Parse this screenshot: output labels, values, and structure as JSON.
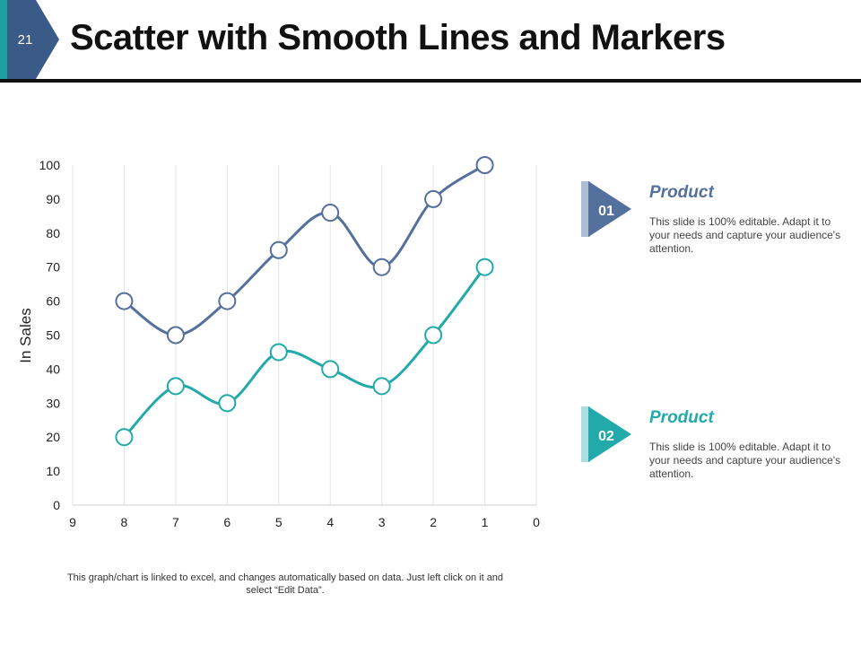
{
  "slide": {
    "number": "21",
    "title": "Scatter with Smooth Lines and Markers",
    "note": "This graph/chart is linked to excel,  and changes automatically based on data. Just left click on it and select “Edit Data”."
  },
  "colors": {
    "series1": "#54709c",
    "series2": "#22aaab",
    "badge_dark": "#54709c",
    "badge_light": "#22aaab",
    "accent_teal": "#1f9fa0",
    "accent_navy": "#3a5a88"
  },
  "products": [
    {
      "number": "01",
      "name": "Product",
      "description": "This slide is 100% editable. Adapt it to your needs and capture your audience's attention."
    },
    {
      "number": "02",
      "name": "Product",
      "description": "This slide is 100% editable. Adapt it to your needs and capture your audience's attention."
    }
  ],
  "chart_data": {
    "type": "scatter",
    "title": "",
    "xlabel": "",
    "ylabel": "In Sales",
    "x_reversed": true,
    "xlim": [
      9,
      0
    ],
    "ylim": [
      0,
      100
    ],
    "x_ticks": [
      9,
      8,
      7,
      6,
      5,
      4,
      3,
      2,
      1,
      0
    ],
    "y_ticks": [
      0,
      10,
      20,
      30,
      40,
      50,
      60,
      70,
      80,
      90,
      100
    ],
    "grid": "vertical",
    "legend": "none",
    "smooth": true,
    "markers": true,
    "series": [
      {
        "x": [
          8,
          7,
          6,
          5,
          4,
          3,
          2,
          1
        ],
        "y": [
          60,
          50,
          60,
          75,
          86,
          70,
          90,
          100
        ]
      },
      {
        "x": [
          8,
          7,
          6,
          5,
          4,
          3,
          2,
          1
        ],
        "y": [
          20,
          35,
          30,
          45,
          40,
          35,
          50,
          70
        ]
      }
    ]
  }
}
